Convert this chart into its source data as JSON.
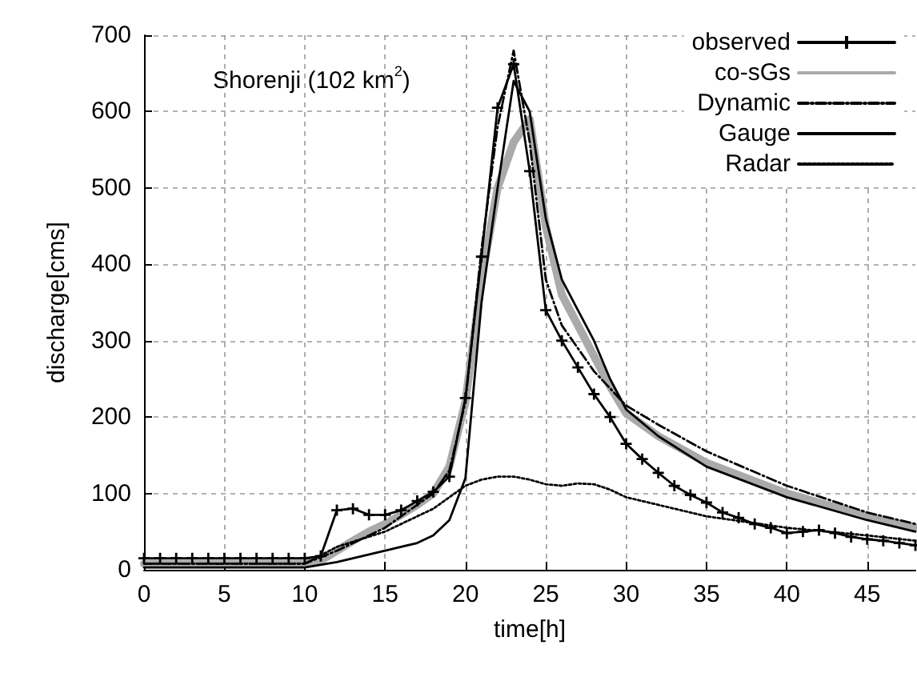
{
  "chart_data": {
    "type": "line",
    "xlabel": "time[h]",
    "ylabel": "discharge[cms]",
    "annotations": [
      {
        "text": "Shorenji (102 km$^{2}$)"
      }
    ],
    "xlim": [
      0,
      48
    ],
    "xticks": [
      0,
      5,
      10,
      15,
      20,
      25,
      30,
      35,
      40,
      45
    ],
    "ylim": [
      0,
      700
    ],
    "yticks": [
      0,
      100,
      200,
      300,
      400,
      500,
      600,
      700
    ],
    "grid": true,
    "legend": "top right",
    "series": [
      {
        "name": "observed",
        "color": "#000000",
        "marker": "cross",
        "line_style": "solid",
        "x": [
          0,
          1,
          2,
          3,
          4,
          5,
          6,
          7,
          8,
          9,
          10,
          11,
          12,
          13,
          14,
          15,
          16,
          17,
          18,
          19,
          20,
          21,
          22,
          23,
          24,
          25,
          26,
          27,
          28,
          29,
          30,
          31,
          32,
          33,
          34,
          35,
          36,
          37,
          38,
          39,
          40,
          41,
          42,
          43,
          44,
          45,
          46,
          47,
          48
        ],
        "values": [
          15,
          15,
          15,
          15,
          15,
          15,
          15,
          15,
          15,
          15,
          15,
          18,
          78,
          80,
          72,
          72,
          78,
          90,
          102,
          122,
          225,
          410,
          605,
          662,
          522,
          340,
          300,
          265,
          230,
          200,
          165,
          145,
          127,
          110,
          98,
          88,
          75,
          68,
          60,
          55,
          48,
          50,
          52,
          48,
          43,
          40,
          38,
          35,
          32
        ]
      },
      {
        "name": "co-sGs",
        "color": "#aaaaaa",
        "marker": "none",
        "line_style": "solid",
        "x": [
          0,
          10,
          11,
          12,
          13,
          14,
          15,
          16,
          17,
          18,
          19,
          20,
          21,
          22,
          23,
          24,
          25,
          26,
          27,
          28,
          29,
          30,
          32,
          35,
          40,
          45,
          48
        ],
        "values": [
          8,
          8,
          12,
          25,
          38,
          50,
          60,
          72,
          85,
          100,
          135,
          220,
          380,
          500,
          560,
          590,
          450,
          360,
          320,
          280,
          240,
          205,
          175,
          140,
          100,
          70,
          55
        ]
      },
      {
        "name": "Dynamic",
        "color": "#000000",
        "marker": "none",
        "line_style": "dashed",
        "x": [
          0,
          10,
          12,
          15,
          18,
          19,
          20,
          21,
          22,
          23,
          24,
          25,
          26,
          27,
          28,
          30,
          32,
          35,
          40,
          45,
          48
        ],
        "values": [
          8,
          8,
          25,
          55,
          100,
          130,
          220,
          420,
          580,
          680,
          560,
          380,
          320,
          290,
          260,
          215,
          190,
          155,
          110,
          75,
          60
        ]
      },
      {
        "name": "Gauge",
        "color": "#000000",
        "marker": "none",
        "line_style": "solid",
        "x": [
          0,
          10,
          12,
          15,
          17,
          18,
          19,
          20,
          21,
          22,
          23,
          24,
          25,
          26,
          27,
          28,
          29,
          30,
          32,
          35,
          40,
          45,
          48
        ],
        "values": [
          3,
          3,
          10,
          25,
          35,
          45,
          65,
          120,
          350,
          500,
          640,
          600,
          460,
          380,
          340,
          300,
          250,
          210,
          175,
          135,
          95,
          65,
          50
        ]
      },
      {
        "name": "Radar",
        "color": "#000000",
        "marker": "none",
        "line_style": "dotted",
        "x": [
          0,
          10,
          12,
          15,
          18,
          19,
          20,
          21,
          22,
          23,
          24,
          25,
          26,
          27,
          28,
          29,
          30,
          32,
          35,
          40,
          45,
          48
        ],
        "values": [
          8,
          8,
          30,
          50,
          80,
          95,
          110,
          118,
          122,
          122,
          118,
          112,
          110,
          113,
          112,
          105,
          95,
          85,
          70,
          55,
          45,
          38
        ]
      }
    ]
  }
}
